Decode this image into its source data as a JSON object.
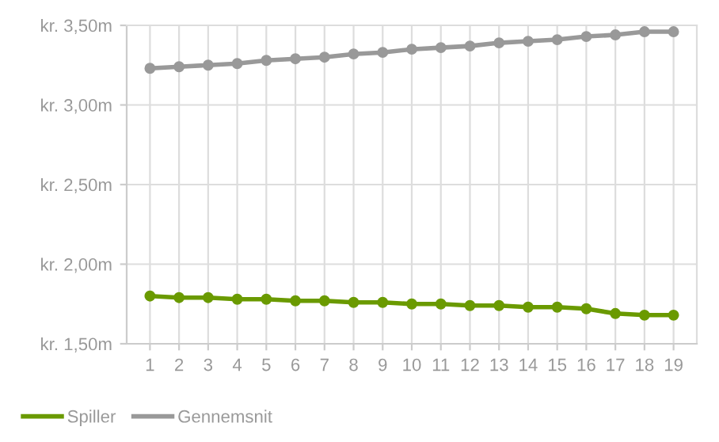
{
  "chart_data": {
    "type": "line",
    "categories": [
      "1",
      "2",
      "3",
      "4",
      "5",
      "6",
      "7",
      "8",
      "9",
      "10",
      "11",
      "12",
      "13",
      "14",
      "15",
      "16",
      "17",
      "18",
      "19"
    ],
    "series": [
      {
        "name": "Spiller",
        "color": "#6a9a00",
        "values": [
          1.8,
          1.79,
          1.79,
          1.78,
          1.78,
          1.77,
          1.77,
          1.76,
          1.76,
          1.75,
          1.75,
          1.74,
          1.74,
          1.73,
          1.73,
          1.72,
          1.69,
          1.68,
          1.68
        ]
      },
      {
        "name": "Gennemsnit",
        "color": "#999999",
        "values": [
          3.23,
          3.24,
          3.25,
          3.26,
          3.28,
          3.29,
          3.3,
          3.32,
          3.33,
          3.35,
          3.36,
          3.37,
          3.39,
          3.4,
          3.41,
          3.43,
          3.44,
          3.46,
          3.46
        ]
      }
    ],
    "ylim": [
      1.5,
      3.5
    ],
    "yticks": [
      {
        "value": 1.5,
        "label": "kr. 1,50m"
      },
      {
        "value": 2.0,
        "label": "kr. 2,00m"
      },
      {
        "value": 2.5,
        "label": "kr. 2,50m"
      },
      {
        "value": 3.0,
        "label": "kr. 3,00m"
      },
      {
        "value": 3.5,
        "label": "kr. 3,50m"
      }
    ],
    "grid": true,
    "legend": "bottom left",
    "marker": "circle",
    "line_style": "solid"
  }
}
